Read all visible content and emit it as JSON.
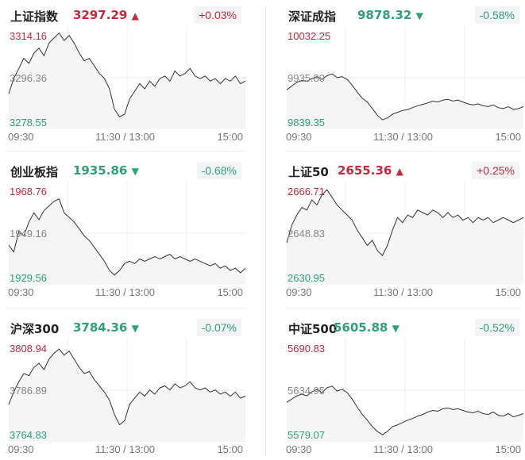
{
  "colors": {
    "up": "#c8283c",
    "down": "#2fa07c",
    "mid": "#888888",
    "line": "#333333",
    "grid": "#eeeeee",
    "fill": "#f5f5f5"
  },
  "time_labels": {
    "start": "09:30",
    "mid": "11:30 / 13:00",
    "end": "15:00"
  },
  "panels": [
    {
      "name": "上证指数",
      "price": "3297.29",
      "direction": "up",
      "arrow": "▲",
      "change": "+0.03%",
      "y_high": "3314.16",
      "y_mid": "3296.36",
      "y_low": "3278.55",
      "chart_data": {
        "type": "line",
        "ylim": [
          3278.55,
          3314.16
        ],
        "reference": 3296.36,
        "values": [
          3290,
          3296,
          3300,
          3304,
          3302,
          3306,
          3308,
          3305,
          3310,
          3312,
          3314,
          3311,
          3313,
          3310,
          3306,
          3303,
          3304,
          3301,
          3298,
          3296,
          3292,
          3284,
          3281,
          3282,
          3288,
          3291,
          3294,
          3292,
          3295,
          3293,
          3296,
          3297,
          3295,
          3299,
          3297,
          3298,
          3300,
          3297,
          3296,
          3297,
          3295,
          3296,
          3294,
          3296,
          3295,
          3297,
          3294,
          3295
        ]
      }
    },
    {
      "name": "深证成指",
      "price": "9878.32",
      "direction": "down",
      "arrow": "▼",
      "change": "-0.58%",
      "y_high": "10032.25",
      "y_mid": "9935.80",
      "y_low": "9839.35",
      "chart_data": {
        "type": "line",
        "ylim": [
          9839.35,
          10032.25
        ],
        "reference": 9935.8,
        "values": [
          9910,
          9918,
          9926,
          9930,
          9928,
          9934,
          9938,
          9932,
          9940,
          9944,
          9936,
          9938,
          9932,
          9920,
          9905,
          9892,
          9884,
          9870,
          9856,
          9846,
          9850,
          9858,
          9862,
          9866,
          9868,
          9872,
          9876,
          9879,
          9882,
          9886,
          9884,
          9888,
          9890,
          9886,
          9888,
          9884,
          9880,
          9878,
          9880,
          9876,
          9874,
          9878,
          9872,
          9870,
          9874,
          9868,
          9870,
          9874
        ]
      }
    },
    {
      "name": "创业板指",
      "price": "1935.86",
      "direction": "down",
      "arrow": "▼",
      "change": "-0.68%",
      "y_high": "1968.76",
      "y_mid": "1949.16",
      "y_low": "1929.56",
      "chart_data": {
        "type": "line",
        "ylim": [
          1929.56,
          1968.76
        ],
        "reference": 1949.16,
        "values": [
          1944,
          1941,
          1950,
          1948,
          1954,
          1958,
          1955,
          1959,
          1961,
          1963,
          1964,
          1958,
          1956,
          1954,
          1951,
          1948,
          1946,
          1943,
          1940,
          1937,
          1933,
          1931,
          1933,
          1936,
          1937,
          1936,
          1938,
          1937,
          1938,
          1939,
          1938,
          1939,
          1940,
          1938,
          1939,
          1938,
          1937,
          1938,
          1937,
          1936,
          1935,
          1936,
          1934,
          1935,
          1933,
          1934,
          1932,
          1934
        ]
      }
    },
    {
      "name": "上证50",
      "price": "2655.36",
      "direction": "up",
      "arrow": "▲",
      "change": "+0.25%",
      "y_high": "2666.71",
      "y_mid": "2648.83",
      "y_low": "2630.95",
      "chart_data": {
        "type": "line",
        "ylim": [
          2630.95,
          2666.71
        ],
        "reference": 2648.83,
        "values": [
          2645,
          2652,
          2656,
          2659,
          2658,
          2662,
          2660,
          2664,
          2666,
          2663,
          2660,
          2658,
          2656,
          2654,
          2650,
          2647,
          2644,
          2646,
          2642,
          2640,
          2644,
          2650,
          2655,
          2653,
          2656,
          2655,
          2658,
          2657,
          2656,
          2658,
          2657,
          2655,
          2657,
          2655,
          2656,
          2654,
          2655,
          2653,
          2655,
          2654,
          2655,
          2653,
          2654,
          2655,
          2654,
          2653,
          2654,
          2655
        ]
      }
    },
    {
      "name": "沪深300",
      "price": "3784.36",
      "direction": "down",
      "arrow": "▼",
      "change": "-0.07%",
      "y_high": "3808.94",
      "y_mid": "3786.89",
      "y_low": "3764.83",
      "chart_data": {
        "type": "line",
        "ylim": [
          3764.83,
          3808.94
        ],
        "reference": 3786.89,
        "values": [
          3780,
          3786,
          3791,
          3795,
          3794,
          3798,
          3800,
          3797,
          3802,
          3805,
          3807,
          3804,
          3806,
          3802,
          3798,
          3795,
          3796,
          3792,
          3789,
          3786,
          3782,
          3775,
          3770,
          3772,
          3780,
          3783,
          3786,
          3784,
          3787,
          3785,
          3788,
          3789,
          3787,
          3790,
          3788,
          3789,
          3791,
          3788,
          3787,
          3788,
          3786,
          3787,
          3785,
          3786,
          3784,
          3786,
          3783,
          3784
        ]
      }
    },
    {
      "name": "中证500",
      "price": "5605.88",
      "direction": "down",
      "arrow": "▼",
      "change": "-0.52%",
      "y_high": "5690.83",
      "y_mid": "5634.95",
      "y_low": "5579.07",
      "chart_data": {
        "type": "line",
        "ylim": [
          5579.07,
          5690.83
        ],
        "reference": 5634.95,
        "values": [
          5620,
          5624,
          5628,
          5630,
          5628,
          5633,
          5636,
          5632,
          5638,
          5640,
          5634,
          5636,
          5632,
          5624,
          5614,
          5605,
          5598,
          5590,
          5584,
          5580,
          5584,
          5590,
          5592,
          5595,
          5598,
          5600,
          5603,
          5605,
          5608,
          5610,
          5609,
          5612,
          5613,
          5611,
          5612,
          5610,
          5608,
          5607,
          5609,
          5606,
          5605,
          5608,
          5604,
          5603,
          5606,
          5602,
          5604,
          5606
        ]
      }
    }
  ]
}
